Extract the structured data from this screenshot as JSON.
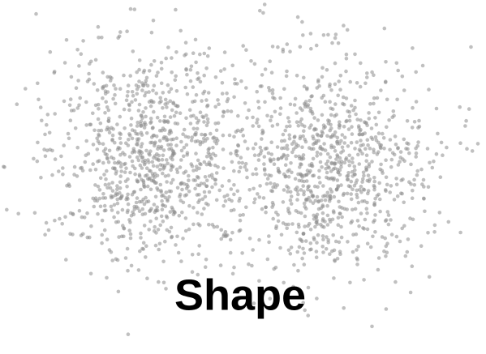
{
  "title": "Shape"
}
